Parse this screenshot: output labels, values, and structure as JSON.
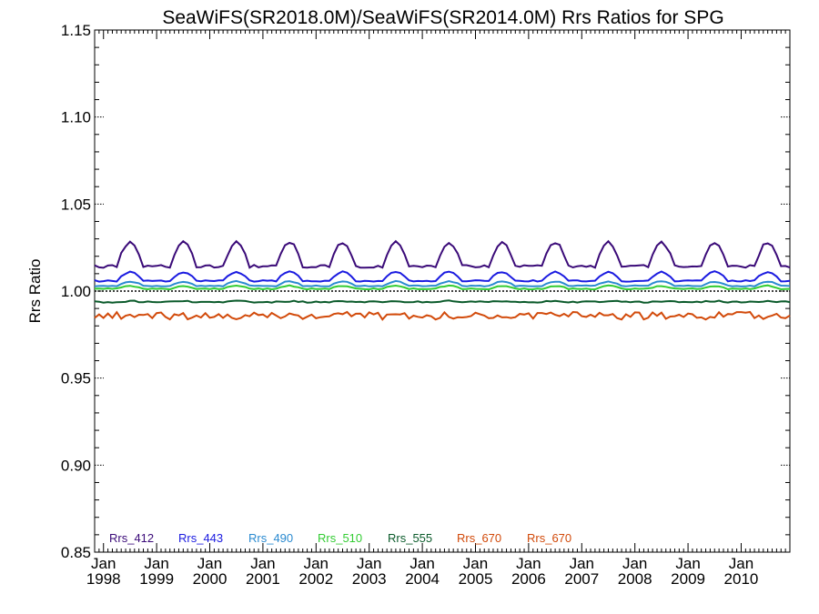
{
  "chart_data": {
    "type": "line",
    "title": "SeaWiFS(SR2018.0M)/SeaWiFS(SR2014.0M)  Rrs Ratios for SPG",
    "xlabel": "",
    "ylabel": "Rrs Ratio",
    "ylim": [
      0.85,
      1.15
    ],
    "xlim": [
      "1997-11",
      "2010-12"
    ],
    "yticks": [
      "0.85",
      "0.90",
      "0.95",
      "1.00",
      "1.05",
      "1.10",
      "1.15"
    ],
    "xticks": [
      {
        "line1": "Jan",
        "line2": "1998",
        "date": "1998-01"
      },
      {
        "line1": "Jan",
        "line2": "1999",
        "date": "1999-01"
      },
      {
        "line1": "Jan",
        "line2": "2000",
        "date": "2000-01"
      },
      {
        "line1": "Jan",
        "line2": "2001",
        "date": "2001-01"
      },
      {
        "line1": "Jan",
        "line2": "2002",
        "date": "2002-01"
      },
      {
        "line1": "Jan",
        "line2": "2003",
        "date": "2003-01"
      },
      {
        "line1": "Jan",
        "line2": "2004",
        "date": "2004-01"
      },
      {
        "line1": "Jan",
        "line2": "2005",
        "date": "2005-01"
      },
      {
        "line1": "Jan",
        "line2": "2006",
        "date": "2006-01"
      },
      {
        "line1": "Jan",
        "line2": "2007",
        "date": "2007-01"
      },
      {
        "line1": "Jan",
        "line2": "2008",
        "date": "2008-01"
      },
      {
        "line1": "Jan",
        "line2": "2009",
        "date": "2009-01"
      },
      {
        "line1": "Jan",
        "line2": "2010",
        "date": "2010-01"
      }
    ],
    "reference_line": {
      "y": 1.0,
      "style": "dotted",
      "color": "#000000"
    },
    "legend_placement": "bottom-left",
    "series": [
      {
        "name": "Rrs_412",
        "color": "#3a0a78",
        "pattern": "seasonal",
        "base": 1.016,
        "amplitude": 0.012,
        "peak_month": 7,
        "noise": 0.0008
      },
      {
        "name": "Rrs_443",
        "color": "#1a1ae0",
        "pattern": "seasonal",
        "base": 1.0065,
        "amplitude": 0.0045,
        "peak_month": 7,
        "noise": 0.0004
      },
      {
        "name": "Rrs_490",
        "color": "#2a8ad0",
        "pattern": "seasonal",
        "base": 1.0033,
        "amplitude": 0.0022,
        "peak_month": 7,
        "noise": 0.0003
      },
      {
        "name": "Rrs_510",
        "color": "#33cc33",
        "pattern": "seasonal",
        "base": 1.0015,
        "amplitude": 0.0015,
        "peak_month": 7,
        "noise": 0.0003
      },
      {
        "name": "Rrs_555",
        "color": "#0a5a2a",
        "pattern": "flat",
        "base": 0.9938,
        "amplitude": 0.0004,
        "peak_month": 7,
        "noise": 0.0004
      },
      {
        "name": "Rrs_670",
        "color": "#d24a0a",
        "pattern": "noisy",
        "base": 0.9858,
        "amplitude": 0.0,
        "peak_month": 7,
        "noise": 0.0022
      },
      {
        "name": "Rrs_670",
        "color": "#d24a0a",
        "pattern": "legend-only",
        "base": null,
        "amplitude": 0.0,
        "peak_month": 7,
        "noise": 0.0
      }
    ]
  }
}
